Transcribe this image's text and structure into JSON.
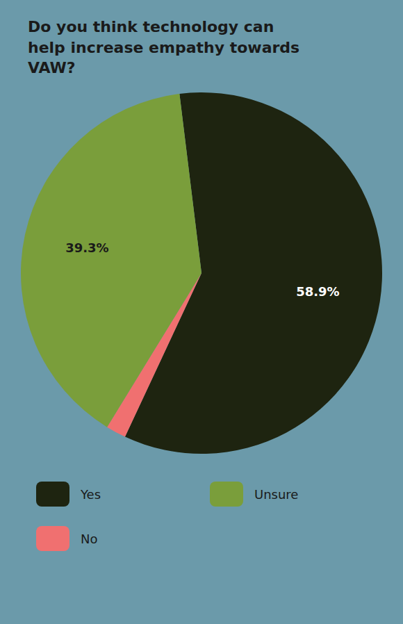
{
  "chart_data": {
    "type": "pie",
    "title": "Do you think technology can\nhelp increase empathy towards\nVAW?",
    "categories": [
      "Yes",
      "No",
      "Unsure"
    ],
    "values": [
      58.9,
      1.8,
      39.3
    ],
    "value_labels": [
      "58.9%",
      null,
      "39.3%"
    ],
    "colors": [
      "#1e2410",
      "#f07070",
      "#7a9e3b"
    ],
    "data_labels": true,
    "legend": "bottom"
  }
}
